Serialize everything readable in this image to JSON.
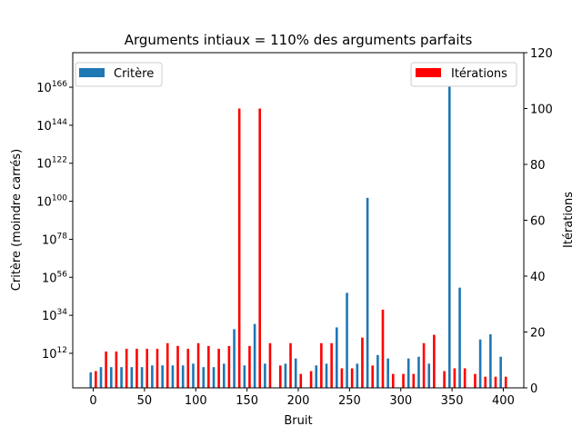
{
  "chart_data": {
    "type": "bar",
    "title": "Arguments intiaux = 110% des arguments parfaits",
    "xlabel": "Bruit",
    "ylabel": "Critère (moindre carrés)",
    "y2label": "Itérations",
    "xlim": [
      -20,
      420
    ],
    "xticks": [
      0,
      50,
      100,
      150,
      200,
      250,
      300,
      350,
      400
    ],
    "y_scale": "log",
    "ylim_exponent": [
      -8,
      186
    ],
    "yticks_exponent": [
      12,
      34,
      56,
      78,
      100,
      122,
      144,
      166
    ],
    "y2lim": [
      0,
      120
    ],
    "y2ticks": [
      0,
      20,
      40,
      60,
      80,
      100,
      120
    ],
    "x": [
      0,
      10,
      20,
      30,
      40,
      50,
      60,
      70,
      80,
      90,
      100,
      110,
      120,
      130,
      140,
      150,
      160,
      170,
      180,
      190,
      200,
      210,
      220,
      230,
      240,
      250,
      260,
      270,
      280,
      290,
      300,
      310,
      320,
      330,
      340,
      350,
      360,
      370,
      380,
      390,
      400
    ],
    "series": [
      {
        "name": "Critère",
        "axis": "left",
        "color": "#1f77b4",
        "log10_values": [
          1,
          4,
          4,
          4,
          4,
          4,
          5,
          5,
          5,
          5,
          6,
          4,
          4,
          6,
          26,
          5,
          29,
          6,
          null,
          6,
          9,
          null,
          5,
          6,
          27,
          47,
          6,
          102,
          11,
          9,
          null,
          9,
          10,
          6,
          null,
          175,
          50,
          null,
          20,
          23,
          10
        ]
      },
      {
        "name": "Itérations",
        "axis": "right",
        "color": "#ff0000",
        "values": [
          6,
          13,
          13,
          14,
          14,
          14,
          14,
          16,
          15,
          14,
          16,
          15,
          14,
          15,
          100,
          15,
          100,
          16,
          8,
          16,
          5,
          6,
          16,
          16,
          7,
          7,
          18,
          8,
          28,
          5,
          5,
          5,
          16,
          19,
          6,
          7,
          7,
          5,
          4,
          4,
          4
        ]
      }
    ],
    "legend_left_position": "upper-left",
    "legend_right_position": "upper-right",
    "grid": false
  }
}
